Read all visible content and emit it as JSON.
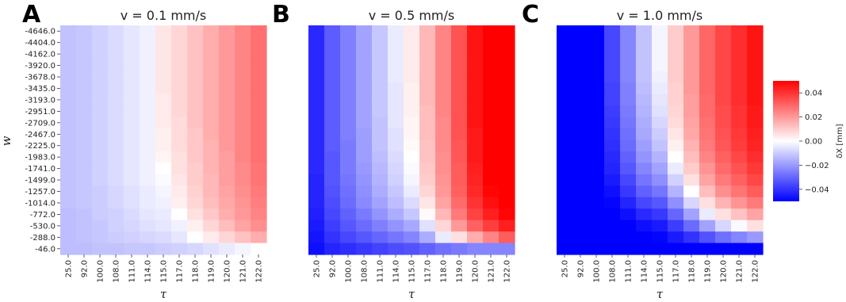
{
  "chart_data": [
    {
      "type": "heatmap",
      "panel": "A",
      "title": "v = 0.1 mm/s",
      "xlabel": "τ",
      "ylabel": "w",
      "x_ticks": [
        "25.0",
        "92.0",
        "100.0",
        "108.0",
        "111.0",
        "114.0",
        "115.0",
        "117.0",
        "118.0",
        "119.0",
        "120.0",
        "121.0",
        "122.0"
      ],
      "y_ticks": [
        "-4646.0",
        "-4404.0",
        "-4162.0",
        "-3920.0",
        "-3678.0",
        "-3435.0",
        "-3193.0",
        "-2951.0",
        "-2709.0",
        "-2467.0",
        "-2225.0",
        "-1983.0",
        "-1741.0",
        "-1499.0",
        "-1257.0",
        "-1014.0",
        "-772.0",
        "-530.0",
        "-288.0",
        "-46.0"
      ],
      "values": [
        [
          -0.012,
          -0.011,
          -0.009,
          -0.007,
          -0.005,
          -0.003,
          0.005,
          0.008,
          0.012,
          0.016,
          0.02,
          0.024,
          0.028
        ],
        [
          -0.012,
          -0.011,
          -0.009,
          -0.007,
          -0.005,
          -0.003,
          0.005,
          0.008,
          0.012,
          0.016,
          0.02,
          0.024,
          0.028
        ],
        [
          -0.012,
          -0.011,
          -0.009,
          -0.007,
          -0.005,
          -0.003,
          0.005,
          0.008,
          0.012,
          0.016,
          0.02,
          0.024,
          0.028
        ],
        [
          -0.012,
          -0.011,
          -0.009,
          -0.007,
          -0.005,
          -0.003,
          0.005,
          0.008,
          0.012,
          0.016,
          0.02,
          0.024,
          0.028
        ],
        [
          -0.012,
          -0.011,
          -0.009,
          -0.007,
          -0.005,
          -0.003,
          0.005,
          0.008,
          0.012,
          0.016,
          0.02,
          0.024,
          0.028
        ],
        [
          -0.012,
          -0.011,
          -0.009,
          -0.007,
          -0.005,
          -0.003,
          0.005,
          0.008,
          0.012,
          0.016,
          0.02,
          0.024,
          0.028
        ],
        [
          -0.012,
          -0.011,
          -0.009,
          -0.007,
          -0.005,
          -0.003,
          0.004,
          0.008,
          0.012,
          0.016,
          0.02,
          0.024,
          0.028
        ],
        [
          -0.012,
          -0.011,
          -0.009,
          -0.007,
          -0.005,
          -0.003,
          0.004,
          0.008,
          0.012,
          0.016,
          0.02,
          0.024,
          0.028
        ],
        [
          -0.012,
          -0.011,
          -0.009,
          -0.007,
          -0.005,
          -0.003,
          0.004,
          0.007,
          0.012,
          0.016,
          0.02,
          0.024,
          0.028
        ],
        [
          -0.012,
          -0.011,
          -0.009,
          -0.007,
          -0.005,
          -0.003,
          0.003,
          0.007,
          0.011,
          0.016,
          0.02,
          0.024,
          0.028
        ],
        [
          -0.012,
          -0.011,
          -0.009,
          -0.007,
          -0.005,
          -0.003,
          0.003,
          0.007,
          0.011,
          0.015,
          0.02,
          0.024,
          0.028
        ],
        [
          -0.012,
          -0.011,
          -0.009,
          -0.007,
          -0.005,
          -0.003,
          0.002,
          0.006,
          0.011,
          0.015,
          0.019,
          0.024,
          0.028
        ],
        [
          -0.012,
          -0.011,
          -0.009,
          -0.007,
          -0.005,
          -0.003,
          0.0,
          0.006,
          0.01,
          0.015,
          0.019,
          0.023,
          0.027
        ],
        [
          -0.012,
          -0.011,
          -0.009,
          -0.007,
          -0.005,
          -0.003,
          -0.001,
          0.005,
          0.01,
          0.014,
          0.019,
          0.023,
          0.027
        ],
        [
          -0.012,
          -0.011,
          -0.01,
          -0.008,
          -0.006,
          -0.004,
          -0.002,
          0.004,
          0.009,
          0.014,
          0.018,
          0.022,
          0.026
        ],
        [
          -0.012,
          -0.011,
          -0.01,
          -0.008,
          -0.006,
          -0.004,
          -0.003,
          0.003,
          0.008,
          0.013,
          0.017,
          0.021,
          0.025
        ],
        [
          -0.013,
          -0.012,
          -0.01,
          -0.009,
          -0.007,
          -0.005,
          -0.004,
          0.0,
          0.006,
          0.011,
          0.016,
          0.02,
          0.024
        ],
        [
          -0.013,
          -0.012,
          -0.011,
          -0.009,
          -0.008,
          -0.006,
          -0.005,
          -0.003,
          0.003,
          0.008,
          0.013,
          0.018,
          0.022
        ],
        [
          -0.013,
          -0.012,
          -0.011,
          -0.01,
          -0.009,
          -0.008,
          -0.007,
          -0.005,
          0.0,
          0.004,
          0.008,
          0.012,
          0.016
        ],
        [
          -0.013,
          -0.013,
          -0.012,
          -0.012,
          -0.011,
          -0.011,
          -0.01,
          -0.009,
          -0.008,
          -0.006,
          -0.004,
          -0.002,
          0.0
        ]
      ]
    },
    {
      "type": "heatmap",
      "panel": "B",
      "title": "v = 0.5 mm/s",
      "xlabel": "τ",
      "x_ticks": [
        "25.0",
        "92.0",
        "100.0",
        "108.0",
        "111.0",
        "114.0",
        "115.0",
        "117.0",
        "118.0",
        "119.0",
        "120.0",
        "121.0",
        "122.0"
      ],
      "values": [
        [
          -0.042,
          -0.032,
          -0.025,
          -0.018,
          -0.011,
          -0.004,
          0.004,
          0.014,
          0.024,
          0.034,
          0.046,
          0.05,
          0.05
        ],
        [
          -0.042,
          -0.032,
          -0.025,
          -0.018,
          -0.011,
          -0.004,
          0.004,
          0.014,
          0.024,
          0.034,
          0.046,
          0.05,
          0.05
        ],
        [
          -0.042,
          -0.032,
          -0.025,
          -0.018,
          -0.011,
          -0.004,
          0.004,
          0.014,
          0.024,
          0.034,
          0.046,
          0.05,
          0.05
        ],
        [
          -0.042,
          -0.032,
          -0.025,
          -0.018,
          -0.011,
          -0.004,
          0.004,
          0.014,
          0.024,
          0.034,
          0.046,
          0.05,
          0.05
        ],
        [
          -0.042,
          -0.032,
          -0.025,
          -0.018,
          -0.011,
          -0.004,
          0.004,
          0.014,
          0.024,
          0.034,
          0.046,
          0.05,
          0.05
        ],
        [
          -0.042,
          -0.032,
          -0.025,
          -0.018,
          -0.011,
          -0.005,
          0.003,
          0.014,
          0.024,
          0.034,
          0.046,
          0.05,
          0.05
        ],
        [
          -0.042,
          -0.032,
          -0.025,
          -0.018,
          -0.011,
          -0.005,
          0.003,
          0.014,
          0.024,
          0.034,
          0.046,
          0.05,
          0.05
        ],
        [
          -0.042,
          -0.032,
          -0.025,
          -0.018,
          -0.011,
          -0.005,
          0.003,
          0.013,
          0.024,
          0.034,
          0.046,
          0.05,
          0.05
        ],
        [
          -0.042,
          -0.032,
          -0.025,
          -0.018,
          -0.012,
          -0.005,
          0.002,
          0.013,
          0.023,
          0.034,
          0.046,
          0.05,
          0.05
        ],
        [
          -0.042,
          -0.032,
          -0.025,
          -0.019,
          -0.012,
          -0.006,
          0.002,
          0.013,
          0.023,
          0.034,
          0.045,
          0.05,
          0.05
        ],
        [
          -0.042,
          -0.032,
          -0.026,
          -0.019,
          -0.012,
          -0.006,
          0.001,
          0.012,
          0.023,
          0.033,
          0.045,
          0.05,
          0.05
        ],
        [
          -0.042,
          -0.033,
          -0.026,
          -0.019,
          -0.013,
          -0.007,
          0.0,
          0.012,
          0.022,
          0.033,
          0.045,
          0.05,
          0.05
        ],
        [
          -0.042,
          -0.033,
          -0.026,
          -0.02,
          -0.014,
          -0.008,
          -0.001,
          0.011,
          0.022,
          0.032,
          0.044,
          0.05,
          0.05
        ],
        [
          -0.043,
          -0.033,
          -0.027,
          -0.021,
          -0.015,
          -0.009,
          -0.002,
          0.01,
          0.021,
          0.032,
          0.043,
          0.05,
          0.05
        ],
        [
          -0.043,
          -0.034,
          -0.028,
          -0.022,
          -0.016,
          -0.011,
          -0.004,
          0.008,
          0.02,
          0.031,
          0.042,
          0.049,
          0.05
        ],
        [
          -0.043,
          -0.035,
          -0.029,
          -0.023,
          -0.018,
          -0.013,
          -0.007,
          0.005,
          0.018,
          0.029,
          0.04,
          0.047,
          0.05
        ],
        [
          -0.044,
          -0.036,
          -0.031,
          -0.026,
          -0.021,
          -0.016,
          -0.011,
          0.001,
          0.014,
          0.026,
          0.037,
          0.044,
          0.049
        ],
        [
          -0.045,
          -0.038,
          -0.033,
          -0.029,
          -0.025,
          -0.021,
          -0.017,
          -0.006,
          0.008,
          0.02,
          0.031,
          0.038,
          0.044
        ],
        [
          -0.046,
          -0.04,
          -0.036,
          -0.033,
          -0.03,
          -0.027,
          -0.024,
          -0.016,
          -0.004,
          0.006,
          0.016,
          0.024,
          0.032
        ],
        [
          -0.047,
          -0.043,
          -0.041,
          -0.039,
          -0.037,
          -0.035,
          -0.034,
          -0.031,
          -0.028,
          -0.026,
          -0.024,
          -0.024,
          -0.024
        ]
      ]
    },
    {
      "type": "heatmap",
      "panel": "C",
      "title": "v = 1.0 mm/s",
      "xlabel": "τ",
      "x_ticks": [
        "25.0",
        "92.0",
        "100.0",
        "108.0",
        "111.0",
        "114.0",
        "115.0",
        "117.0",
        "118.0",
        "119.0",
        "120.0",
        "121.0",
        "122.0"
      ],
      "values": [
        [
          -0.05,
          -0.05,
          -0.05,
          -0.036,
          -0.024,
          -0.012,
          -0.002,
          0.01,
          0.02,
          0.03,
          0.036,
          0.041,
          0.046
        ],
        [
          -0.05,
          -0.05,
          -0.05,
          -0.036,
          -0.024,
          -0.012,
          -0.002,
          0.01,
          0.02,
          0.03,
          0.036,
          0.041,
          0.046
        ],
        [
          -0.05,
          -0.05,
          -0.05,
          -0.036,
          -0.024,
          -0.012,
          -0.002,
          0.01,
          0.02,
          0.03,
          0.036,
          0.041,
          0.046
        ],
        [
          -0.05,
          -0.05,
          -0.05,
          -0.036,
          -0.024,
          -0.012,
          -0.002,
          0.01,
          0.02,
          0.03,
          0.036,
          0.041,
          0.046
        ],
        [
          -0.05,
          -0.05,
          -0.05,
          -0.036,
          -0.024,
          -0.012,
          -0.003,
          0.01,
          0.02,
          0.03,
          0.036,
          0.041,
          0.046
        ],
        [
          -0.05,
          -0.05,
          -0.05,
          -0.037,
          -0.025,
          -0.013,
          -0.004,
          0.009,
          0.02,
          0.03,
          0.036,
          0.041,
          0.046
        ],
        [
          -0.05,
          -0.05,
          -0.05,
          -0.037,
          -0.025,
          -0.014,
          -0.005,
          0.009,
          0.019,
          0.029,
          0.036,
          0.041,
          0.046
        ],
        [
          -0.05,
          -0.05,
          -0.05,
          -0.038,
          -0.026,
          -0.015,
          -0.006,
          0.008,
          0.019,
          0.029,
          0.035,
          0.04,
          0.045
        ],
        [
          -0.05,
          -0.05,
          -0.05,
          -0.039,
          -0.027,
          -0.016,
          -0.008,
          0.007,
          0.018,
          0.028,
          0.035,
          0.04,
          0.045
        ],
        [
          -0.05,
          -0.05,
          -0.05,
          -0.04,
          -0.028,
          -0.017,
          -0.01,
          0.005,
          0.017,
          0.027,
          0.034,
          0.039,
          0.044
        ],
        [
          -0.05,
          -0.05,
          -0.05,
          -0.041,
          -0.029,
          -0.019,
          -0.012,
          0.003,
          0.015,
          0.026,
          0.033,
          0.038,
          0.043
        ],
        [
          -0.05,
          -0.05,
          -0.05,
          -0.042,
          -0.031,
          -0.021,
          -0.015,
          0.0,
          0.013,
          0.024,
          0.031,
          0.036,
          0.041
        ],
        [
          -0.05,
          -0.05,
          -0.05,
          -0.043,
          -0.033,
          -0.024,
          -0.018,
          -0.004,
          0.01,
          0.021,
          0.029,
          0.034,
          0.039
        ],
        [
          -0.05,
          -0.05,
          -0.05,
          -0.045,
          -0.036,
          -0.027,
          -0.022,
          -0.009,
          0.006,
          0.018,
          0.026,
          0.031,
          0.036
        ],
        [
          -0.05,
          -0.05,
          -0.05,
          -0.047,
          -0.039,
          -0.031,
          -0.027,
          -0.015,
          0.0,
          0.013,
          0.022,
          0.027,
          0.032
        ],
        [
          -0.05,
          -0.05,
          -0.05,
          -0.049,
          -0.043,
          -0.036,
          -0.033,
          -0.022,
          -0.008,
          0.006,
          0.015,
          0.021,
          0.026
        ],
        [
          -0.05,
          -0.05,
          -0.05,
          -0.05,
          -0.047,
          -0.042,
          -0.039,
          -0.03,
          -0.018,
          -0.004,
          0.006,
          0.012,
          0.018
        ],
        [
          -0.05,
          -0.05,
          -0.05,
          -0.05,
          -0.05,
          -0.047,
          -0.045,
          -0.038,
          -0.029,
          -0.018,
          -0.008,
          -0.001,
          0.006
        ],
        [
          -0.05,
          -0.05,
          -0.05,
          -0.05,
          -0.05,
          -0.05,
          -0.049,
          -0.045,
          -0.04,
          -0.034,
          -0.028,
          -0.024,
          -0.02
        ],
        [
          -0.05,
          -0.05,
          -0.05,
          -0.05,
          -0.05,
          -0.05,
          -0.05,
          -0.05,
          -0.05,
          -0.05,
          -0.05,
          -0.05,
          -0.05
        ]
      ]
    }
  ],
  "colorbar": {
    "label": "δX [mm]",
    "range": [
      -0.05,
      0.05
    ],
    "ticks": [
      "0.04",
      "0.02",
      "0.00",
      "−0.02",
      "−0.04"
    ],
    "tick_values": [
      0.04,
      0.02,
      0.0,
      -0.02,
      -0.04
    ],
    "colormap": "bwr",
    "colors": {
      "low": "#0000ff",
      "mid": "#ffffff",
      "high": "#ff0000"
    }
  }
}
